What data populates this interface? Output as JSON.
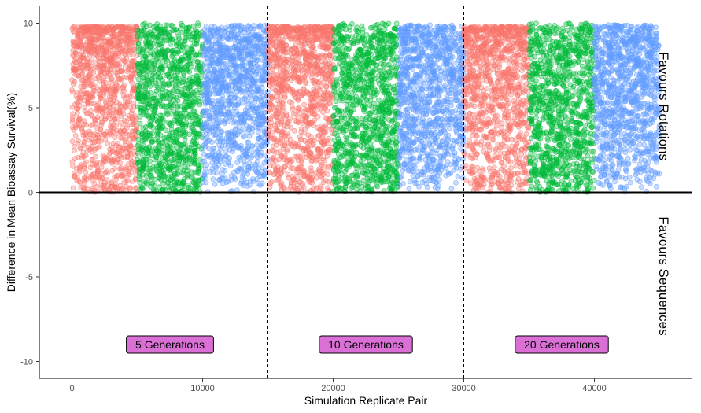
{
  "chart_data": {
    "type": "scatter",
    "title": "",
    "xlabel": "Simulation Replicate Pair",
    "ylabel": "Difference in Mean Bioassay Survival(%)",
    "xlim": [
      -2500,
      47500
    ],
    "ylim": [
      -11,
      11
    ],
    "x_ticks": [
      0,
      10000,
      20000,
      30000,
      40000
    ],
    "x_tick_labels": [
      "0",
      "10000",
      "20000",
      "30000",
      "40000"
    ],
    "y_ticks": [
      -10,
      -5,
      0,
      5,
      10
    ],
    "y_tick_labels": [
      "-10",
      "-5",
      "0",
      "5",
      "10"
    ],
    "grid": false,
    "legend": "none",
    "reference_lines": {
      "horizontal_solid_y": 0,
      "vertical_dashed_x": [
        15000,
        30000
      ]
    },
    "side_labels": {
      "upper": "Favours Rotations",
      "lower": "Favours Sequences"
    },
    "panel_labels": [
      {
        "text": "5 Generations",
        "x": 7500,
        "y": -9
      },
      {
        "text": "10 Generations",
        "x": 22500,
        "y": -9
      },
      {
        "text": "20 Generations",
        "x": 37500,
        "y": -9
      }
    ],
    "label_fill": "#DA70D6",
    "series": [
      {
        "x_range": [
          0,
          5000
        ],
        "y_range": [
          0,
          10
        ],
        "color": "#F8766D",
        "distribution": "dense-low, sparse-high"
      },
      {
        "x_range": [
          5000,
          10000
        ],
        "y_range": [
          0,
          10
        ],
        "color": "#00BA38",
        "distribution": "dense-uniform"
      },
      {
        "x_range": [
          10000,
          15000
        ],
        "y_range": [
          0,
          10
        ],
        "color": "#619CFF",
        "distribution": "dense-high, sparse-low"
      },
      {
        "x_range": [
          15000,
          20000
        ],
        "y_range": [
          0,
          10
        ],
        "color": "#F8766D",
        "distribution": "dense-low, sparse-high"
      },
      {
        "x_range": [
          20000,
          25000
        ],
        "y_range": [
          0,
          10
        ],
        "color": "#00BA38",
        "distribution": "dense-uniform"
      },
      {
        "x_range": [
          25000,
          30000
        ],
        "y_range": [
          0,
          10
        ],
        "color": "#619CFF",
        "distribution": "dense-high, sparse-low"
      },
      {
        "x_range": [
          30000,
          35000
        ],
        "y_range": [
          0,
          10
        ],
        "color": "#F8766D",
        "distribution": "dense-low, sparse-high"
      },
      {
        "x_range": [
          35000,
          40000
        ],
        "y_range": [
          0,
          10
        ],
        "color": "#00BA38",
        "distribution": "dense-uniform"
      },
      {
        "x_range": [
          40000,
          45000
        ],
        "y_range": [
          0,
          10
        ],
        "color": "#619CFF",
        "distribution": "dense-high, sparse-low"
      }
    ]
  }
}
